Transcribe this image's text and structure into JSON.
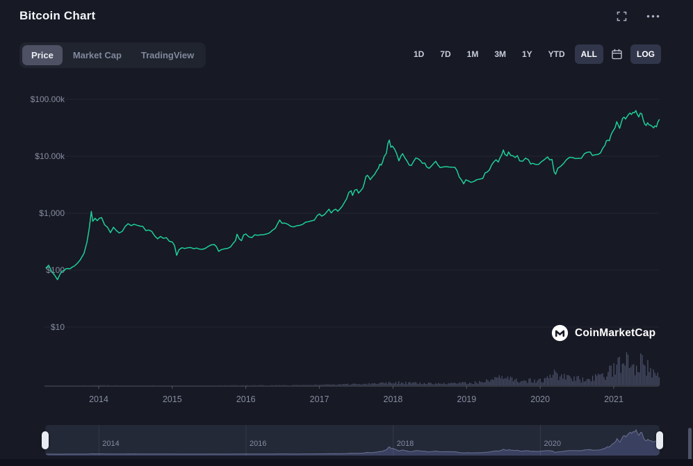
{
  "header": {
    "title": "Bitcoin Chart"
  },
  "toolbar": {
    "left_tabs": [
      {
        "label": "Price",
        "active": true
      },
      {
        "label": "Market Cap",
        "active": false
      },
      {
        "label": "TradingView",
        "active": false
      }
    ],
    "ranges": [
      {
        "label": "1D",
        "active": false
      },
      {
        "label": "7D",
        "active": false
      },
      {
        "label": "1M",
        "active": false
      },
      {
        "label": "3M",
        "active": false
      },
      {
        "label": "1Y",
        "active": false
      },
      {
        "label": "YTD",
        "active": false
      },
      {
        "label": "ALL",
        "active": true
      }
    ],
    "scale_toggle": {
      "label": "LOG",
      "active": true
    }
  },
  "watermark": {
    "text": "CoinMarketCap"
  },
  "colors": {
    "background": "#171924",
    "line": "#1ed099",
    "volume": "#4a5069",
    "axis_text": "#868da2"
  },
  "chart_data": {
    "type": "line",
    "title": "Bitcoin price history (log scale)",
    "y_scale": "log",
    "x_range": [
      2013.27,
      2021.62
    ],
    "x_ticks": [
      2014,
      2015,
      2016,
      2017,
      2018,
      2019,
      2020,
      2021
    ],
    "y_ticks": [
      {
        "label": "$100.00k",
        "value": 100000
      },
      {
        "label": "$10.00k",
        "value": 10000
      },
      {
        "label": "$1,000",
        "value": 1000
      },
      {
        "label": "$100",
        "value": 100
      },
      {
        "label": "$10",
        "value": 10
      }
    ],
    "line_color": "#1ed099",
    "volume_color": "#4a5069",
    "price": [
      [
        2013.28,
        108
      ],
      [
        2013.32,
        122
      ],
      [
        2013.36,
        95
      ],
      [
        2013.4,
        82
      ],
      [
        2013.44,
        68
      ],
      [
        2013.48,
        88
      ],
      [
        2013.53,
        98
      ],
      [
        2013.58,
        107
      ],
      [
        2013.64,
        113
      ],
      [
        2013.7,
        128
      ],
      [
        2013.75,
        152
      ],
      [
        2013.8,
        196
      ],
      [
        2013.84,
        310
      ],
      [
        2013.87,
        520
      ],
      [
        2013.9,
        1075
      ],
      [
        2013.92,
        720
      ],
      [
        2013.95,
        815
      ],
      [
        2013.98,
        740
      ],
      [
        2014.01,
        818
      ],
      [
        2014.04,
        835
      ],
      [
        2014.08,
        625
      ],
      [
        2014.12,
        565
      ],
      [
        2014.16,
        455
      ],
      [
        2014.2,
        565
      ],
      [
        2014.24,
        495
      ],
      [
        2014.28,
        450
      ],
      [
        2014.32,
        480
      ],
      [
        2014.36,
        585
      ],
      [
        2014.4,
        655
      ],
      [
        2014.44,
        605
      ],
      [
        2014.48,
        640
      ],
      [
        2014.52,
        615
      ],
      [
        2014.56,
        595
      ],
      [
        2014.6,
        585
      ],
      [
        2014.64,
        495
      ],
      [
        2014.68,
        505
      ],
      [
        2014.72,
        480
      ],
      [
        2014.76,
        400
      ],
      [
        2014.8,
        355
      ],
      [
        2014.84,
        390
      ],
      [
        2014.88,
        362
      ],
      [
        2014.92,
        372
      ],
      [
        2014.96,
        322
      ],
      [
        2015.0,
        312
      ],
      [
        2015.03,
        272
      ],
      [
        2015.06,
        182
      ],
      [
        2015.09,
        228
      ],
      [
        2015.13,
        248
      ],
      [
        2015.17,
        240
      ],
      [
        2015.21,
        248
      ],
      [
        2015.25,
        250
      ],
      [
        2015.29,
        238
      ],
      [
        2015.33,
        244
      ],
      [
        2015.37,
        234
      ],
      [
        2015.41,
        232
      ],
      [
        2015.45,
        242
      ],
      [
        2015.49,
        262
      ],
      [
        2015.53,
        278
      ],
      [
        2015.57,
        282
      ],
      [
        2015.6,
        258
      ],
      [
        2015.63,
        214
      ],
      [
        2015.67,
        230
      ],
      [
        2015.71,
        237
      ],
      [
        2015.75,
        241
      ],
      [
        2015.79,
        255
      ],
      [
        2015.83,
        298
      ],
      [
        2015.86,
        332
      ],
      [
        2015.88,
        428
      ],
      [
        2015.91,
        355
      ],
      [
        2015.94,
        330
      ],
      [
        2015.97,
        415
      ],
      [
        2016.0,
        432
      ],
      [
        2016.04,
        385
      ],
      [
        2016.08,
        372
      ],
      [
        2016.12,
        418
      ],
      [
        2016.16,
        410
      ],
      [
        2016.2,
        418
      ],
      [
        2016.24,
        420
      ],
      [
        2016.28,
        432
      ],
      [
        2016.32,
        450
      ],
      [
        2016.36,
        500
      ],
      [
        2016.4,
        545
      ],
      [
        2016.44,
        685
      ],
      [
        2016.46,
        760
      ],
      [
        2016.49,
        668
      ],
      [
        2016.53,
        672
      ],
      [
        2016.57,
        640
      ],
      [
        2016.61,
        588
      ],
      [
        2016.65,
        575
      ],
      [
        2016.69,
        602
      ],
      [
        2016.73,
        612
      ],
      [
        2016.77,
        635
      ],
      [
        2016.81,
        695
      ],
      [
        2016.85,
        710
      ],
      [
        2016.89,
        735
      ],
      [
        2016.93,
        755
      ],
      [
        2016.97,
        908
      ],
      [
        2017.0,
        970
      ],
      [
        2017.03,
        888
      ],
      [
        2017.07,
        950
      ],
      [
        2017.1,
        1060
      ],
      [
        2017.13,
        1178
      ],
      [
        2017.16,
        1012
      ],
      [
        2017.19,
        1122
      ],
      [
        2017.22,
        1178
      ],
      [
        2017.25,
        1082
      ],
      [
        2017.28,
        1188
      ],
      [
        2017.31,
        1328
      ],
      [
        2017.34,
        1550
      ],
      [
        2017.37,
        1795
      ],
      [
        2017.4,
        2320
      ],
      [
        2017.43,
        2480
      ],
      [
        2017.45,
        2050
      ],
      [
        2017.48,
        2550
      ],
      [
        2017.51,
        2600
      ],
      [
        2017.53,
        2250
      ],
      [
        2017.56,
        2480
      ],
      [
        2017.59,
        2775
      ],
      [
        2017.61,
        3380
      ],
      [
        2017.63,
        4370
      ],
      [
        2017.65,
        4630
      ],
      [
        2017.67,
        4330
      ],
      [
        2017.69,
        3880
      ],
      [
        2017.72,
        4370
      ],
      [
        2017.75,
        4825
      ],
      [
        2017.78,
        5650
      ],
      [
        2017.8,
        6100
      ],
      [
        2017.82,
        7250
      ],
      [
        2017.84,
        6975
      ],
      [
        2017.86,
        8050
      ],
      [
        2017.88,
        9850
      ],
      [
        2017.91,
        11300
      ],
      [
        2017.93,
        16700
      ],
      [
        2017.95,
        19300
      ],
      [
        2017.97,
        14400
      ],
      [
        2017.99,
        15100
      ],
      [
        2018.02,
        13400
      ],
      [
        2018.05,
        11100
      ],
      [
        2018.08,
        8300
      ],
      [
        2018.11,
        10250
      ],
      [
        2018.13,
        11100
      ],
      [
        2018.16,
        9400
      ],
      [
        2018.19,
        8250
      ],
      [
        2018.22,
        7000
      ],
      [
        2018.25,
        6900
      ],
      [
        2018.28,
        8150
      ],
      [
        2018.31,
        9350
      ],
      [
        2018.34,
        9050
      ],
      [
        2018.37,
        8450
      ],
      [
        2018.4,
        7500
      ],
      [
        2018.43,
        7620
      ],
      [
        2018.46,
        6450
      ],
      [
        2018.49,
        6150
      ],
      [
        2018.52,
        6700
      ],
      [
        2018.55,
        7420
      ],
      [
        2018.58,
        8180
      ],
      [
        2018.61,
        7030
      ],
      [
        2018.64,
        6350
      ],
      [
        2018.68,
        6480
      ],
      [
        2018.72,
        6580
      ],
      [
        2018.76,
        6480
      ],
      [
        2018.8,
        6420
      ],
      [
        2018.84,
        6400
      ],
      [
        2018.87,
        5600
      ],
      [
        2018.9,
        4320
      ],
      [
        2018.93,
        3850
      ],
      [
        2018.96,
        3280
      ],
      [
        2018.99,
        3860
      ],
      [
        2019.02,
        3720
      ],
      [
        2019.06,
        3480
      ],
      [
        2019.1,
        3620
      ],
      [
        2019.14,
        3880
      ],
      [
        2019.18,
        3970
      ],
      [
        2019.22,
        4080
      ],
      [
        2019.25,
        5080
      ],
      [
        2019.28,
        5280
      ],
      [
        2019.31,
        5750
      ],
      [
        2019.34,
        7050
      ],
      [
        2019.37,
        7980
      ],
      [
        2019.4,
        8680
      ],
      [
        2019.43,
        7920
      ],
      [
        2019.45,
        9080
      ],
      [
        2019.48,
        10850
      ],
      [
        2019.5,
        12920
      ],
      [
        2019.52,
        10820
      ],
      [
        2019.55,
        10180
      ],
      [
        2019.57,
        11900
      ],
      [
        2019.6,
        10350
      ],
      [
        2019.63,
        10180
      ],
      [
        2019.66,
        9520
      ],
      [
        2019.69,
        10280
      ],
      [
        2019.72,
        8320
      ],
      [
        2019.76,
        8180
      ],
      [
        2019.8,
        9280
      ],
      [
        2019.84,
        8680
      ],
      [
        2019.87,
        7320
      ],
      [
        2019.9,
        7520
      ],
      [
        2019.94,
        7180
      ],
      [
        2019.98,
        7220
      ],
      [
        2020.02,
        8080
      ],
      [
        2020.06,
        8780
      ],
      [
        2020.1,
        9750
      ],
      [
        2020.13,
        8620
      ],
      [
        2020.16,
        8820
      ],
      [
        2020.19,
        5300
      ],
      [
        2020.21,
        4850
      ],
      [
        2020.24,
        6180
      ],
      [
        2020.28,
        6680
      ],
      [
        2020.32,
        7520
      ],
      [
        2020.36,
        8780
      ],
      [
        2020.4,
        9580
      ],
      [
        2020.44,
        9480
      ],
      [
        2020.48,
        9120
      ],
      [
        2020.52,
        9180
      ],
      [
        2020.56,
        9230
      ],
      [
        2020.6,
        11080
      ],
      [
        2020.64,
        11780
      ],
      [
        2020.68,
        11880
      ],
      [
        2020.71,
        10320
      ],
      [
        2020.75,
        10680
      ],
      [
        2020.79,
        10780
      ],
      [
        2020.82,
        11480
      ],
      [
        2020.85,
        13780
      ],
      [
        2020.88,
        15580
      ],
      [
        2020.9,
        18680
      ],
      [
        2020.92,
        19150
      ],
      [
        2020.94,
        18750
      ],
      [
        2020.96,
        23200
      ],
      [
        2020.98,
        26500
      ],
      [
        2021.0,
        29000
      ],
      [
        2021.02,
        32150
      ],
      [
        2021.04,
        40500
      ],
      [
        2021.06,
        35400
      ],
      [
        2021.08,
        31000
      ],
      [
        2021.1,
        38250
      ],
      [
        2021.12,
        46350
      ],
      [
        2021.14,
        48600
      ],
      [
        2021.16,
        45100
      ],
      [
        2021.18,
        49600
      ],
      [
        2021.2,
        54050
      ],
      [
        2021.22,
        57300
      ],
      [
        2021.24,
        54100
      ],
      [
        2021.26,
        58750
      ],
      [
        2021.28,
        57950
      ],
      [
        2021.3,
        63400
      ],
      [
        2021.32,
        54000
      ],
      [
        2021.34,
        49050
      ],
      [
        2021.36,
        56950
      ],
      [
        2021.38,
        55850
      ],
      [
        2021.4,
        43550
      ],
      [
        2021.42,
        36650
      ],
      [
        2021.44,
        34650
      ],
      [
        2021.46,
        38750
      ],
      [
        2021.48,
        35550
      ],
      [
        2021.5,
        34950
      ],
      [
        2021.52,
        33500
      ],
      [
        2021.54,
        31550
      ],
      [
        2021.56,
        34250
      ],
      [
        2021.58,
        32800
      ],
      [
        2021.6,
        39900
      ],
      [
        2021.62,
        44500
      ]
    ],
    "volume": [
      [
        2013.28,
        0.08
      ],
      [
        2013.6,
        0.08
      ],
      [
        2013.9,
        0.25
      ],
      [
        2014.0,
        0.3
      ],
      [
        2014.3,
        0.2
      ],
      [
        2014.6,
        0.18
      ],
      [
        2015.0,
        0.18
      ],
      [
        2015.5,
        0.15
      ],
      [
        2015.9,
        0.25
      ],
      [
        2016.2,
        0.3
      ],
      [
        2016.5,
        0.45
      ],
      [
        2016.8,
        0.5
      ],
      [
        2017.0,
        0.9
      ],
      [
        2017.2,
        1.1
      ],
      [
        2017.4,
        1.6
      ],
      [
        2017.6,
        2.2
      ],
      [
        2017.8,
        2.8
      ],
      [
        2017.95,
        4.6
      ],
      [
        2018.05,
        4.2
      ],
      [
        2018.2,
        3.4
      ],
      [
        2018.4,
        2.8
      ],
      [
        2018.6,
        2.5
      ],
      [
        2018.8,
        2.4
      ],
      [
        2018.95,
        3.4
      ],
      [
        2019.1,
        3.6
      ],
      [
        2019.25,
        5.2
      ],
      [
        2019.4,
        8.2
      ],
      [
        2019.5,
        9.8
      ],
      [
        2019.65,
        7.4
      ],
      [
        2019.8,
        6.6
      ],
      [
        2019.95,
        6.2
      ],
      [
        2020.1,
        8.4
      ],
      [
        2020.2,
        15.5
      ],
      [
        2020.35,
        9.8
      ],
      [
        2020.5,
        8.2
      ],
      [
        2020.65,
        9.4
      ],
      [
        2020.8,
        10.5
      ],
      [
        2020.9,
        13.5
      ],
      [
        2021.0,
        22.0
      ],
      [
        2021.05,
        28.0
      ],
      [
        2021.1,
        33.0
      ],
      [
        2021.16,
        60.0
      ],
      [
        2021.22,
        30.0
      ],
      [
        2021.28,
        29.0
      ],
      [
        2021.34,
        27.0
      ],
      [
        2021.38,
        35.0
      ],
      [
        2021.44,
        25.0
      ],
      [
        2021.5,
        19.0
      ],
      [
        2021.56,
        16.0
      ],
      [
        2021.62,
        18.0
      ]
    ],
    "navigator": {
      "labels": [
        2014,
        2016,
        2018,
        2020
      ],
      "fill": "#3a4160",
      "stroke": "#6a7294"
    }
  }
}
